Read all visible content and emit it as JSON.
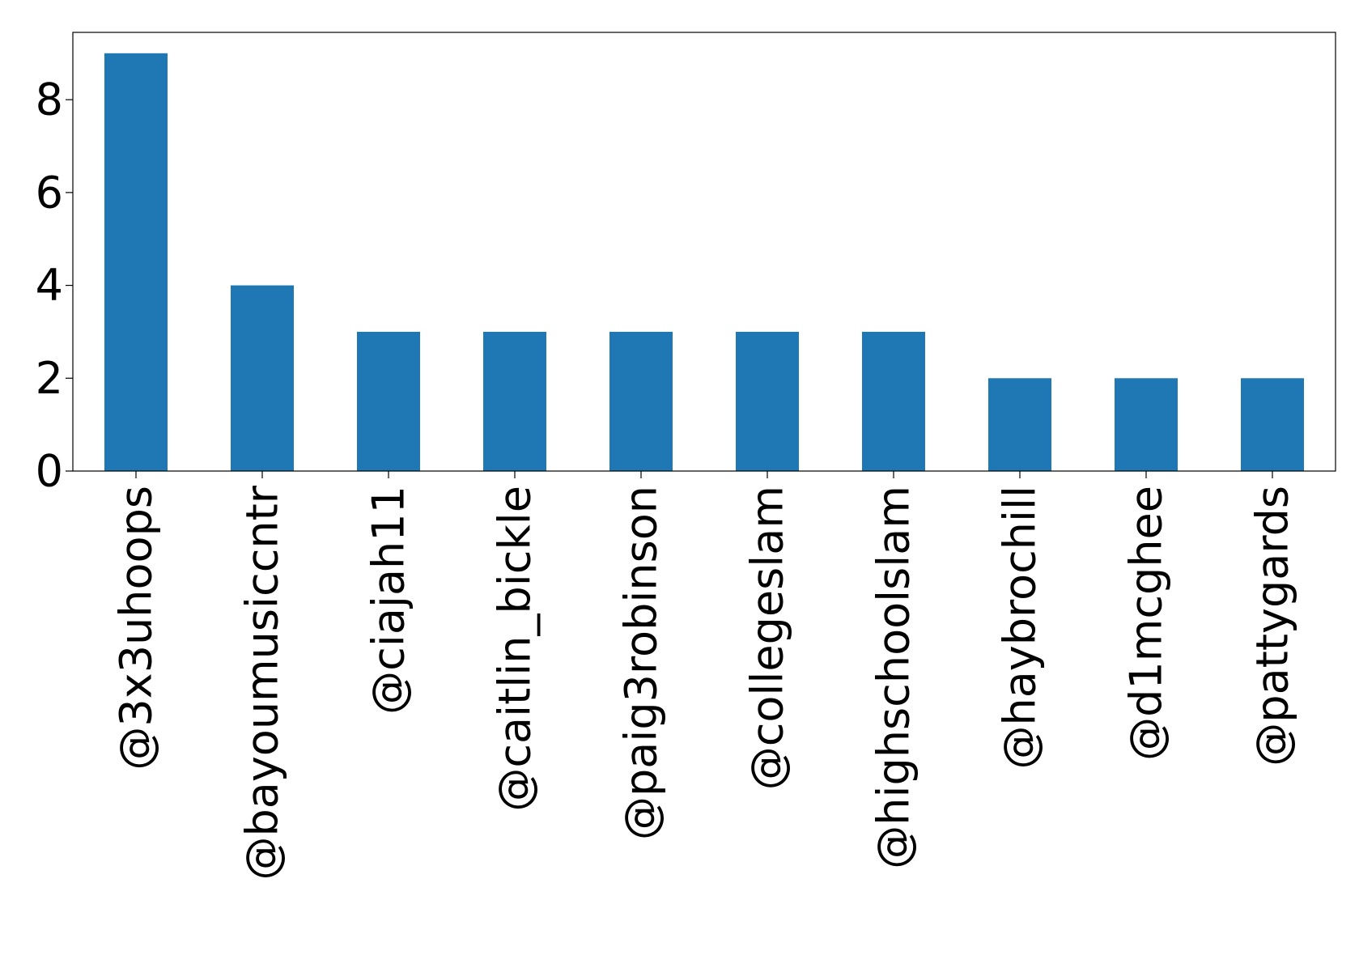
{
  "chart_data": {
    "type": "bar",
    "title": "",
    "xlabel": "",
    "ylabel": "",
    "categories": [
      "@3x3uhoops",
      "@bayoumusiccntr",
      "@ciajah11",
      "@caitlin_bickle",
      "@paig3robinson",
      "@collegeslam",
      "@highschoolslam",
      "@haybrochill",
      "@d1mcghee",
      "@pattygards"
    ],
    "values": [
      9,
      4,
      3,
      3,
      3,
      3,
      3,
      2,
      2,
      2
    ],
    "ylim": [
      0,
      9.45
    ],
    "yticks": [
      0,
      2,
      4,
      6,
      8
    ],
    "grid": false,
    "bar_color": "#1f77b4"
  }
}
